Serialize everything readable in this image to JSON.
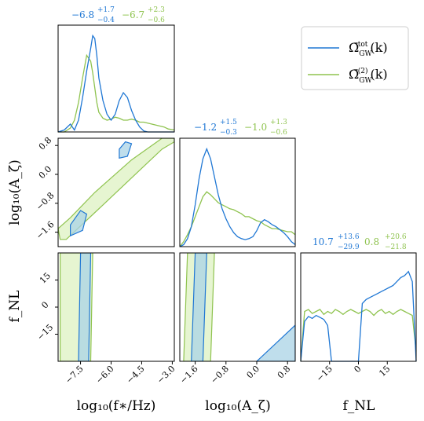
{
  "colors": {
    "tot": "#1f77d4",
    "second": "#8fc34f",
    "second_fill": "#d9efb8",
    "tot_fill": "#a9d3e6",
    "dark": "#2f4f2f"
  },
  "legend": {
    "entries": [
      {
        "key": "tot",
        "label": "Ω̄ GW tot (k)",
        "base": "Ω̄",
        "sub": "GW",
        "sup": "tot",
        "tail": "(k)"
      },
      {
        "key": "second",
        "label": "Ω̄ GW (2) (k)",
        "base": "Ω̄",
        "sub": "GW",
        "sup": "(2)",
        "tail": "(k)"
      }
    ]
  },
  "titles": [
    {
      "param": "log10_fstar",
      "tot": {
        "median": "−6.8",
        "plus": "+1.7",
        "minus": "−0.4"
      },
      "second": {
        "median": "−6.7",
        "plus": "+2.3",
        "minus": "−0.6"
      }
    },
    {
      "param": "log10_Azeta",
      "tot": {
        "median": "−1.2",
        "plus": "+1.5",
        "minus": "−0.3"
      },
      "second": {
        "median": "−1.0",
        "plus": "+1.3",
        "minus": "−0.6"
      }
    },
    {
      "param": "fNL",
      "tot": {
        "median": "10.7",
        "plus": "+13.6",
        "minus": "−29.9"
      },
      "second": {
        "median": "0.8",
        "plus": "+20.6",
        "minus": "−21.8"
      }
    }
  ],
  "axes": {
    "x_labels": [
      "log₁₀(f∗/Hz)",
      "log₁₀(A_ζ)",
      "f_NL"
    ],
    "y_labels": [
      "log₁₀(A_ζ)",
      "f_NL"
    ],
    "ticks": {
      "log10_fstar": [
        "−7.5",
        "−6.0",
        "−4.5",
        "−3.0"
      ],
      "log10_Azeta": [
        "−1.6",
        "−0.8",
        "0.0",
        "0.8"
      ],
      "fNL": [
        "−15",
        "0",
        "15"
      ]
    }
  },
  "chart_data": {
    "type": "corner",
    "parameters": [
      "log10_fstar",
      "log10_Azeta",
      "fNL"
    ],
    "ranges": {
      "log10_fstar": [
        -8.6,
        -2.9
      ],
      "log10_Azeta": [
        -2.0,
        1.0
      ],
      "fNL": [
        -30,
        30
      ]
    },
    "marginals": {
      "log10_fstar": {
        "x": [
          -8.6,
          -8.3,
          -8.0,
          -7.8,
          -7.6,
          -7.4,
          -7.2,
          -7.0,
          -6.9,
          -6.8,
          -6.7,
          -6.6,
          -6.4,
          -6.2,
          -6.0,
          -5.8,
          -5.6,
          -5.4,
          -5.2,
          -5.0,
          -4.8,
          -4.6,
          -4.4,
          -4.2,
          -4.0,
          -3.8,
          -3.6,
          -3.4,
          -3.2,
          -2.9
        ],
        "tot": [
          0.0,
          0.02,
          0.08,
          0.02,
          0.12,
          0.35,
          0.62,
          0.85,
          0.98,
          0.95,
          0.78,
          0.55,
          0.32,
          0.18,
          0.12,
          0.18,
          0.32,
          0.4,
          0.35,
          0.22,
          0.12,
          0.05,
          0.01,
          0.0,
          0.0,
          0.0,
          0.0,
          0.0,
          0.0,
          0.0
        ],
        "second": [
          0.0,
          0.0,
          0.04,
          0.12,
          0.3,
          0.55,
          0.78,
          0.72,
          0.6,
          0.45,
          0.3,
          0.2,
          0.14,
          0.12,
          0.13,
          0.15,
          0.14,
          0.12,
          0.12,
          0.13,
          0.12,
          0.1,
          0.1,
          0.09,
          0.08,
          0.07,
          0.06,
          0.05,
          0.03,
          0.02
        ]
      },
      "log10_Azeta": {
        "x": [
          -2.0,
          -1.9,
          -1.8,
          -1.7,
          -1.6,
          -1.5,
          -1.4,
          -1.3,
          -1.2,
          -1.1,
          -1.0,
          -0.9,
          -0.8,
          -0.7,
          -0.6,
          -0.5,
          -0.4,
          -0.3,
          -0.2,
          -0.1,
          0.0,
          0.1,
          0.2,
          0.3,
          0.4,
          0.5,
          0.6,
          0.7,
          0.8,
          0.9,
          1.0
        ],
        "tot": [
          0.0,
          0.02,
          0.08,
          0.2,
          0.42,
          0.68,
          0.88,
          0.98,
          0.88,
          0.7,
          0.52,
          0.38,
          0.28,
          0.2,
          0.14,
          0.1,
          0.08,
          0.07,
          0.08,
          0.1,
          0.16,
          0.24,
          0.27,
          0.25,
          0.22,
          0.2,
          0.17,
          0.14,
          0.1,
          0.05,
          0.02
        ],
        "second": [
          0.0,
          0.05,
          0.12,
          0.2,
          0.3,
          0.4,
          0.5,
          0.55,
          0.52,
          0.48,
          0.44,
          0.42,
          0.4,
          0.38,
          0.37,
          0.35,
          0.33,
          0.3,
          0.3,
          0.28,
          0.26,
          0.25,
          0.22,
          0.2,
          0.18,
          0.18,
          0.17,
          0.16,
          0.15,
          0.15,
          0.12
        ]
      },
      "fNL": {
        "x": [
          -30,
          -28,
          -26,
          -24,
          -22,
          -20,
          -18,
          -16,
          -14,
          -12,
          -10,
          -8,
          -6,
          -4,
          -2,
          0,
          2,
          4,
          6,
          8,
          10,
          12,
          14,
          16,
          18,
          20,
          22,
          24,
          26,
          28,
          30
        ],
        "tot": [
          0.0,
          0.4,
          0.45,
          0.43,
          0.46,
          0.44,
          0.42,
          0.36,
          0.0,
          0.0,
          0.0,
          0.0,
          0.0,
          0.0,
          0.0,
          0.0,
          0.58,
          0.62,
          0.64,
          0.66,
          0.68,
          0.7,
          0.72,
          0.74,
          0.76,
          0.8,
          0.84,
          0.86,
          0.9,
          0.8,
          0.0
        ],
        "second": [
          0.0,
          0.5,
          0.52,
          0.48,
          0.5,
          0.52,
          0.47,
          0.5,
          0.48,
          0.52,
          0.5,
          0.47,
          0.5,
          0.52,
          0.5,
          0.48,
          0.5,
          0.52,
          0.5,
          0.46,
          0.5,
          0.52,
          0.48,
          0.5,
          0.47,
          0.5,
          0.52,
          0.5,
          0.48,
          0.46,
          0.1
        ]
      }
    },
    "joint_regions": {
      "log10_Azeta_vs_log10_fstar": {
        "second_band": [
          [
            -8.5,
            -1.8
          ],
          [
            -8.2,
            -1.8
          ],
          [
            -6.5,
            -0.9
          ],
          [
            -5.0,
            -0.1
          ],
          [
            -3.5,
            0.7
          ],
          [
            -2.9,
            0.9
          ],
          [
            -2.9,
            1.0
          ],
          [
            -3.5,
            1.0
          ],
          [
            -5.0,
            0.4
          ],
          [
            -6.8,
            -0.5
          ],
          [
            -8.0,
            -1.2
          ],
          [
            -8.6,
            -1.5
          ]
        ],
        "tot_core": [
          [
            -8.0,
            -1.7
          ],
          [
            -7.4,
            -1.55
          ],
          [
            -7.2,
            -1.1
          ],
          [
            -7.5,
            -1.0
          ],
          [
            -8.0,
            -1.4
          ]
        ],
        "tot_upper": [
          [
            -5.6,
            0.45
          ],
          [
            -5.2,
            0.5
          ],
          [
            -5.0,
            0.85
          ],
          [
            -5.3,
            0.9
          ],
          [
            -5.6,
            0.7
          ]
        ]
      },
      "fNL_vs_log10_fstar": {
        "second_band": [
          [
            -8.5,
            -30
          ],
          [
            -7.0,
            -30
          ],
          [
            -6.9,
            30
          ],
          [
            -8.5,
            30
          ]
        ],
        "tot_band": [
          [
            -7.6,
            -30
          ],
          [
            -7.1,
            -30
          ],
          [
            -7.0,
            30
          ],
          [
            -7.5,
            30
          ]
        ]
      },
      "fNL_vs_log10_Azeta": {
        "second_band": [
          [
            -1.9,
            -30
          ],
          [
            -1.2,
            -30
          ],
          [
            -1.1,
            30
          ],
          [
            -1.8,
            30
          ]
        ],
        "tot_band": [
          [
            -1.7,
            -30
          ],
          [
            -1.4,
            -30
          ],
          [
            -1.3,
            30
          ],
          [
            -1.6,
            30
          ]
        ],
        "tot_corner": [
          [
            0.0,
            -30
          ],
          [
            1.0,
            -30
          ],
          [
            1.0,
            -10
          ],
          [
            0.6,
            -18
          ]
        ]
      }
    }
  }
}
